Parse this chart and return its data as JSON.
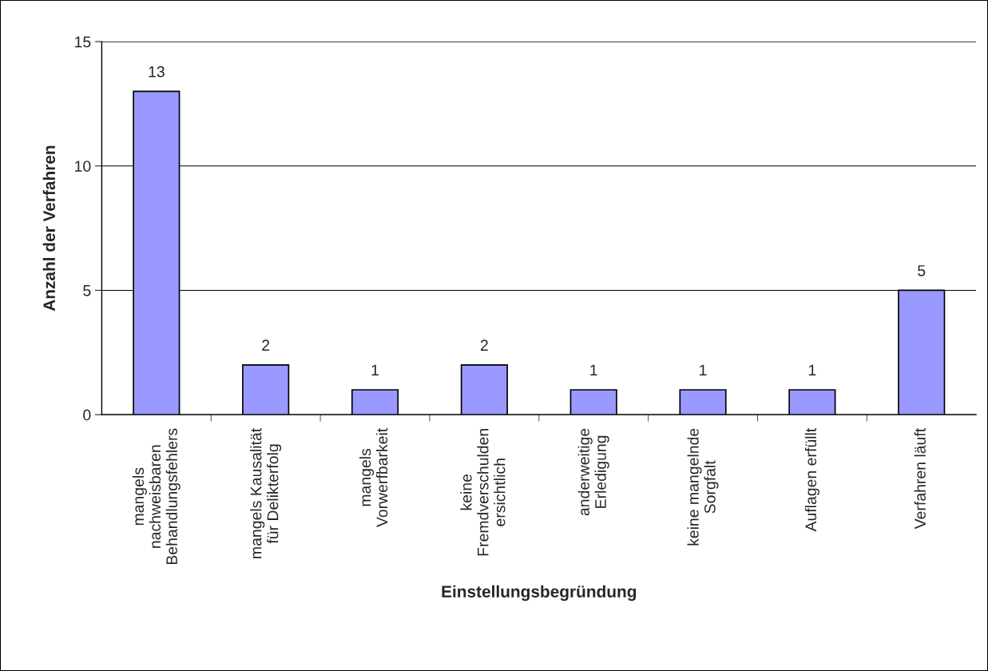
{
  "chart_data": {
    "type": "bar",
    "xlabel": "Einstellungsbegründung",
    "ylabel": "Anzahl der Verfahren",
    "categories": [
      "mangels\nnachweisbaren\nBehandlungsfehlers",
      "mangels Kausalität\nfür Delikterfolg",
      "mangels\nVorwerfbarkeit",
      "keine\nFremdverschulden\nersichtlich",
      "anderweitige\nErledigung",
      "keine mangelnde\nSorgfalt",
      "Auflagen erfüllt",
      "Verfahren läuft"
    ],
    "values": [
      13,
      2,
      1,
      2,
      1,
      1,
      1,
      5
    ],
    "color": "#9999ff",
    "ylim": [
      0,
      15
    ],
    "yticks": [
      0,
      5,
      10,
      15
    ],
    "grid": "y",
    "data_labels": true,
    "legend": false
  }
}
